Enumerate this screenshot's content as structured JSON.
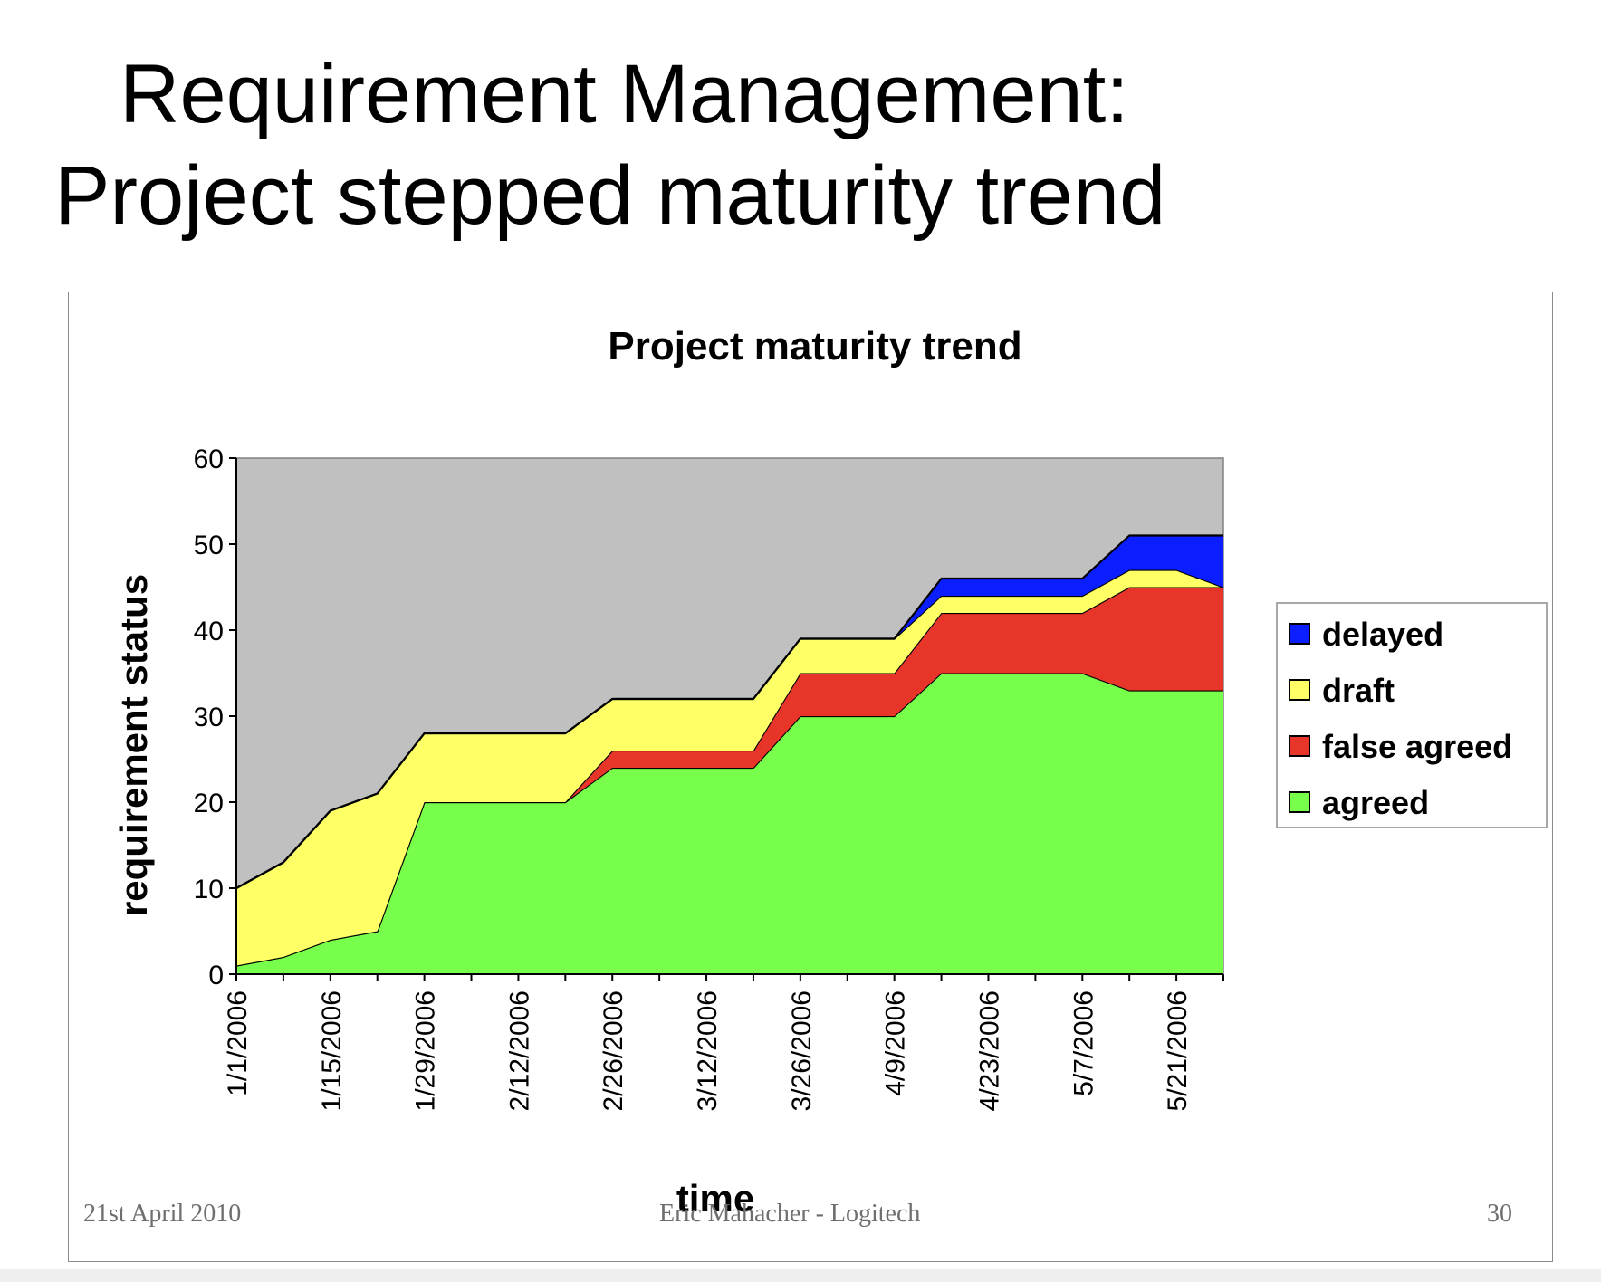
{
  "slide": {
    "title_line1": "Requirement Management:",
    "title_line2": "Project stepped maturity trend",
    "footer_date": "21st April 2010",
    "footer_author": "Eric Mahacher - Logitech",
    "page_number": "30"
  },
  "chart_data": {
    "type": "area",
    "stacked": true,
    "title": "Project maturity trend",
    "xlabel": "time",
    "ylabel": "requirement status",
    "ylim": [
      0,
      60
    ],
    "yticks": [
      0,
      10,
      20,
      30,
      40,
      50,
      60
    ],
    "grid": false,
    "plot_background": "#c0c0c0",
    "legend_position": "right",
    "x": [
      "1/1/2006",
      "1/8/2006",
      "1/15/2006",
      "1/22/2006",
      "1/29/2006",
      "2/5/2006",
      "2/12/2006",
      "2/19/2006",
      "2/26/2006",
      "3/5/2006",
      "3/12/2006",
      "3/19/2006",
      "3/26/2006",
      "4/2/2006",
      "4/9/2006",
      "4/16/2006",
      "4/23/2006",
      "4/30/2006",
      "5/7/2006",
      "5/14/2006",
      "5/21/2006",
      "5/28/2006"
    ],
    "xtick_labels": [
      "1/1/2006",
      "1/15/2006",
      "1/29/2006",
      "2/12/2006",
      "2/26/2006",
      "3/12/2006",
      "3/26/2006",
      "4/9/2006",
      "4/23/2006",
      "5/7/2006",
      "5/21/2006"
    ],
    "series": [
      {
        "name": "agreed",
        "color": "#77ff4c",
        "values": [
          1,
          2,
          4,
          5,
          20,
          20,
          20,
          20,
          24,
          24,
          24,
          24,
          30,
          30,
          30,
          35,
          35,
          35,
          35,
          33,
          33,
          33
        ]
      },
      {
        "name": "false agreed",
        "color": "#e8352a",
        "values": [
          0,
          0,
          0,
          0,
          0,
          0,
          0,
          0,
          2,
          2,
          2,
          2,
          5,
          5,
          5,
          7,
          7,
          7,
          7,
          12,
          12,
          12
        ]
      },
      {
        "name": "draft",
        "color": "#ffff66",
        "values": [
          9,
          11,
          15,
          16,
          8,
          8,
          8,
          8,
          6,
          6,
          6,
          6,
          4,
          4,
          4,
          2,
          2,
          2,
          2,
          2,
          2,
          0
        ]
      },
      {
        "name": "delayed",
        "color": "#0a1eff",
        "values": [
          0,
          0,
          0,
          0,
          0,
          0,
          0,
          0,
          0,
          0,
          0,
          0,
          0,
          0,
          0,
          2,
          2,
          2,
          2,
          4,
          4,
          6
        ]
      }
    ],
    "legend_order": [
      "delayed",
      "draft",
      "false agreed",
      "agreed"
    ]
  }
}
